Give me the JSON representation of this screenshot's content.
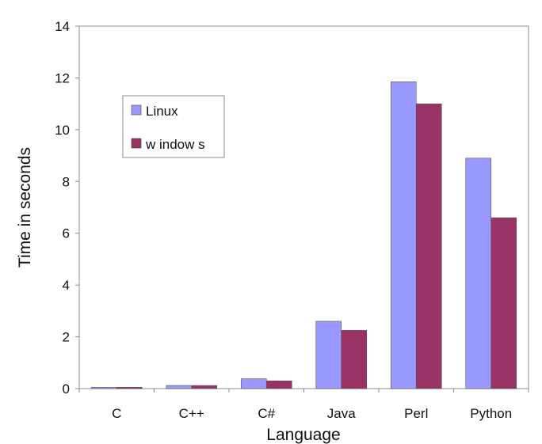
{
  "chart_data": {
    "type": "bar",
    "title": "",
    "xlabel": "Language",
    "ylabel": "Time in seconds",
    "categories": [
      "C",
      "C++",
      "C#",
      "Java",
      "Perl",
      "Python"
    ],
    "series": [
      {
        "name": "Linux",
        "color": "#9999ff",
        "values": [
          0.05,
          0.12,
          0.38,
          2.6,
          11.85,
          8.9
        ]
      },
      {
        "name": "w indow s",
        "color": "#993366",
        "values": [
          0.05,
          0.12,
          0.3,
          2.25,
          11.0,
          6.6
        ]
      }
    ],
    "ylim": [
      0,
      14
    ],
    "yticks": [
      0,
      2,
      4,
      6,
      8,
      10,
      12,
      14
    ],
    "grid": false,
    "legend_position": "top-left"
  }
}
